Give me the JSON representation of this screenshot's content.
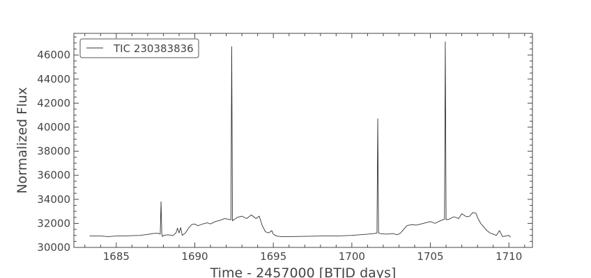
{
  "chart_data": {
    "type": "line",
    "title": "",
    "xlabel": "Time - 2457000 [BTJD days]",
    "ylabel": "Normalized Flux",
    "xlim": [
      1682.3,
      1711.5
    ],
    "ylim": [
      30000,
      47800
    ],
    "xticks": [
      1685,
      1690,
      1695,
      1700,
      1705,
      1710
    ],
    "yticks": [
      30000,
      32000,
      34000,
      36000,
      38000,
      40000,
      42000,
      44000,
      46000
    ],
    "xtick_labels": [
      "1685",
      "1690",
      "1695",
      "1700",
      "1705",
      "1710"
    ],
    "ytick_labels": [
      "30000",
      "32000",
      "34000",
      "36000",
      "38000",
      "40000",
      "42000",
      "44000",
      "46000"
    ],
    "x_minor_step": 1,
    "y_minor_step": 500,
    "grid": false,
    "legend_position": "top-left",
    "line_color": "#333333",
    "series": [
      {
        "name": "TIC 230383836",
        "x": [
          1683.3,
          1684.0,
          1684.5,
          1685.0,
          1685.5,
          1686.0,
          1686.5,
          1687.0,
          1687.3,
          1687.6,
          1687.8,
          1687.85,
          1687.9,
          1687.95,
          1688.0,
          1688.3,
          1688.6,
          1688.8,
          1688.9,
          1689.0,
          1689.1,
          1689.2,
          1689.4,
          1689.6,
          1689.8,
          1690.0,
          1690.2,
          1690.5,
          1690.8,
          1691.0,
          1691.3,
          1691.6,
          1691.9,
          1692.1,
          1692.3,
          1692.35,
          1692.4,
          1692.45,
          1692.5,
          1692.7,
          1693.0,
          1693.3,
          1693.6,
          1693.9,
          1694.1,
          1694.3,
          1694.5,
          1694.7,
          1694.9,
          1695.0,
          1695.2,
          1695.5,
          1696.0,
          1697.0,
          1698.0,
          1699.0,
          1700.0,
          1700.5,
          1701.0,
          1701.4,
          1701.6,
          1701.65,
          1701.7,
          1701.8,
          1702.2,
          1702.6,
          1702.9,
          1703.1,
          1703.3,
          1703.5,
          1703.8,
          1704.1,
          1704.4,
          1704.7,
          1705.0,
          1705.3,
          1705.6,
          1705.8,
          1705.9,
          1705.95,
          1706.0,
          1706.2,
          1706.5,
          1706.8,
          1707.0,
          1707.3,
          1707.5,
          1707.7,
          1707.9,
          1708.0,
          1708.2,
          1708.4,
          1708.6,
          1708.8,
          1709.0,
          1709.2,
          1709.4,
          1709.6,
          1709.8,
          1710.0,
          1710.1
        ],
        "y": [
          30950,
          30950,
          30900,
          30950,
          30950,
          30980,
          31000,
          31080,
          31150,
          31180,
          31120,
          33800,
          31050,
          30900,
          31000,
          31050,
          30980,
          31200,
          31600,
          31200,
          31650,
          31000,
          31200,
          31600,
          31900,
          31950,
          31800,
          31950,
          32050,
          31950,
          32150,
          32250,
          32400,
          32350,
          32300,
          46700,
          32200,
          32300,
          32300,
          32500,
          32600,
          32400,
          32700,
          32400,
          32600,
          31800,
          31300,
          31200,
          31400,
          31100,
          30950,
          30900,
          30900,
          30920,
          30950,
          30950,
          31000,
          31050,
          31100,
          31150,
          31200,
          40700,
          31200,
          31150,
          31100,
          31150,
          31050,
          31200,
          31500,
          31800,
          31900,
          31850,
          31950,
          32050,
          32150,
          32000,
          32200,
          32300,
          32350,
          47100,
          32300,
          32350,
          32550,
          32400,
          32800,
          32550,
          32600,
          32900,
          32850,
          32500,
          32000,
          31700,
          31400,
          31200,
          31100,
          31000,
          31400,
          30900,
          30950,
          31000,
          30850
        ]
      }
    ]
  }
}
